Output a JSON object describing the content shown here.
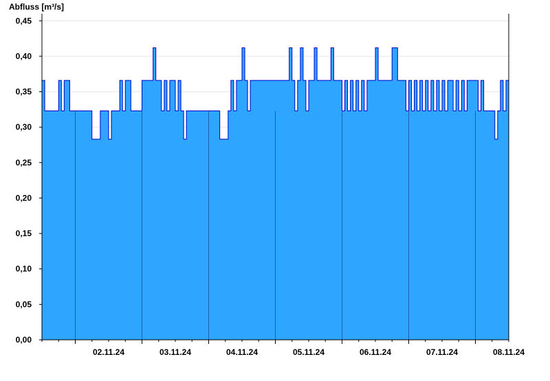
{
  "chart_data": {
    "type": "area",
    "title": "",
    "ylabel": "Abfluss [m³/s]",
    "xlabel": "",
    "ylim": [
      0,
      0.46
    ],
    "yticks": [
      0,
      0.05,
      0.1,
      0.15,
      0.2,
      0.25,
      0.3,
      0.35,
      0.4,
      0.45
    ],
    "ytick_labels": [
      "0,00",
      "0,05",
      "0,10",
      "0,15",
      "0,20",
      "0,25",
      "0,30",
      "0,35",
      "0,40",
      "0,45"
    ],
    "xlim": [
      "2024-11-01T12:00",
      "2024-11-08T12:00"
    ],
    "xtick_labels": [
      "02.11.24",
      "03.11.24",
      "04.11.24",
      "05.11.24",
      "06.11.24",
      "07.11.24",
      "08.11.24"
    ],
    "day_boundaries": [
      "2024-11-02T00:00",
      "2024-11-03T00:00",
      "2024-11-04T00:00",
      "2024-11-05T00:00",
      "2024-11-06T00:00",
      "2024-11-07T00:00",
      "2024-11-08T00:00"
    ],
    "grid": true,
    "legend": "none",
    "colors": {
      "fill": "#2ea6ff",
      "line": "#0000cc",
      "divider": "#1d5fb0",
      "grid": "#e6e6e6"
    },
    "series": [
      {
        "x": [
          "2024-11-01T12:00",
          "2024-11-01T13:00",
          "2024-11-01T14:00",
          "2024-11-01T16:00",
          "2024-11-01T17:00",
          "2024-11-01T18:00",
          "2024-11-01T19:00",
          "2024-11-01T20:00",
          "2024-11-01T21:00",
          "2024-11-01T22:00",
          "2024-11-01T23:00",
          "2024-11-02T00:00",
          "2024-11-02T01:00",
          "2024-11-02T02:00",
          "2024-11-02T03:00",
          "2024-11-02T04:00",
          "2024-11-02T05:00",
          "2024-11-02T06:00",
          "2024-11-02T09:00",
          "2024-11-02T12:00",
          "2024-11-02T13:00",
          "2024-11-02T14:00",
          "2024-11-02T15:00",
          "2024-11-02T16:00",
          "2024-11-02T17:00",
          "2024-11-02T18:00",
          "2024-11-02T20:00",
          "2024-11-02T22:00",
          "2024-11-03T00:00",
          "2024-11-03T02:00",
          "2024-11-03T03:00",
          "2024-11-03T04:00",
          "2024-11-03T05:00",
          "2024-11-03T06:00",
          "2024-11-03T07:00",
          "2024-11-03T08:00",
          "2024-11-03T09:00",
          "2024-11-03T10:00",
          "2024-11-03T11:00",
          "2024-11-03T12:00",
          "2024-11-03T13:00",
          "2024-11-03T14:00",
          "2024-11-03T15:00",
          "2024-11-03T16:00",
          "2024-11-03T17:00",
          "2024-11-03T18:00",
          "2024-11-03T19:00",
          "2024-11-03T20:00",
          "2024-11-03T21:00",
          "2024-11-03T22:00",
          "2024-11-03T23:00",
          "2024-11-04T00:00",
          "2024-11-04T04:00",
          "2024-11-04T07:00",
          "2024-11-04T08:00",
          "2024-11-04T09:00",
          "2024-11-04T10:00",
          "2024-11-04T11:00",
          "2024-11-04T12:00",
          "2024-11-04T13:00",
          "2024-11-04T14:00",
          "2024-11-04T15:00",
          "2024-11-04T16:00",
          "2024-11-04T17:00",
          "2024-11-04T18:00",
          "2024-11-04T20:00",
          "2024-11-04T22:00",
          "2024-11-05T00:00",
          "2024-11-05T02:00",
          "2024-11-05T04:00",
          "2024-11-05T05:00",
          "2024-11-05T06:00",
          "2024-11-05T07:00",
          "2024-11-05T08:00",
          "2024-11-05T09:00",
          "2024-11-05T10:00",
          "2024-11-05T11:00",
          "2024-11-05T12:00",
          "2024-11-05T13:00",
          "2024-11-05T14:00",
          "2024-11-05T15:00",
          "2024-11-05T16:00",
          "2024-11-05T17:00",
          "2024-11-05T19:00",
          "2024-11-05T20:00",
          "2024-11-05T21:00",
          "2024-11-05T22:00",
          "2024-11-05T23:00",
          "2024-11-06T00:00",
          "2024-11-06T01:00",
          "2024-11-06T02:00",
          "2024-11-06T03:00",
          "2024-11-06T04:00",
          "2024-11-06T05:00",
          "2024-11-06T06:00",
          "2024-11-06T07:00",
          "2024-11-06T08:00",
          "2024-11-06T09:00",
          "2024-11-06T10:00",
          "2024-11-06T11:00",
          "2024-11-06T12:00",
          "2024-11-06T13:00",
          "2024-11-06T14:00",
          "2024-11-06T17:00",
          "2024-11-06T18:00",
          "2024-11-06T19:00",
          "2024-11-06T20:00",
          "2024-11-06T21:00",
          "2024-11-06T22:00",
          "2024-11-06T23:00",
          "2024-11-07T00:00",
          "2024-11-07T01:00",
          "2024-11-07T02:00",
          "2024-11-07T03:00",
          "2024-11-07T04:00",
          "2024-11-07T05:00",
          "2024-11-07T06:00",
          "2024-11-07T07:00",
          "2024-11-07T08:00",
          "2024-11-07T09:00",
          "2024-11-07T10:00",
          "2024-11-07T11:00",
          "2024-11-07T12:00",
          "2024-11-07T13:00",
          "2024-11-07T14:00",
          "2024-11-07T15:00",
          "2024-11-07T16:00",
          "2024-11-07T17:00",
          "2024-11-07T18:00",
          "2024-11-07T19:00",
          "2024-11-07T20:00",
          "2024-11-07T21:00",
          "2024-11-07T22:00",
          "2024-11-07T23:00",
          "2024-11-08T00:00",
          "2024-11-08T01:00",
          "2024-11-08T02:00",
          "2024-11-08T03:00",
          "2024-11-08T04:00",
          "2024-11-08T05:00",
          "2024-11-08T06:00",
          "2024-11-08T07:00",
          "2024-11-08T08:00",
          "2024-11-08T09:00",
          "2024-11-08T10:00",
          "2024-11-08T11:00",
          "2024-11-08T12:00"
        ],
        "y": [
          0.366,
          0.323,
          0.323,
          0.323,
          0.323,
          0.366,
          0.323,
          0.366,
          0.366,
          0.323,
          0.323,
          0.323,
          0.323,
          0.323,
          0.323,
          0.323,
          0.323,
          0.283,
          0.323,
          0.283,
          0.323,
          0.323,
          0.323,
          0.366,
          0.323,
          0.366,
          0.323,
          0.323,
          0.366,
          0.366,
          0.366,
          0.412,
          0.366,
          0.366,
          0.323,
          0.366,
          0.323,
          0.366,
          0.366,
          0.323,
          0.366,
          0.323,
          0.283,
          0.323,
          0.323,
          0.323,
          0.323,
          0.323,
          0.323,
          0.323,
          0.323,
          0.323,
          0.283,
          0.323,
          0.366,
          0.323,
          0.366,
          0.366,
          0.412,
          0.366,
          0.323,
          0.366,
          0.366,
          0.366,
          0.366,
          0.366,
          0.366,
          0.366,
          0.366,
          0.366,
          0.412,
          0.366,
          0.323,
          0.366,
          0.412,
          0.366,
          0.323,
          0.366,
          0.366,
          0.412,
          0.366,
          0.366,
          0.366,
          0.366,
          0.412,
          0.366,
          0.366,
          0.366,
          0.323,
          0.366,
          0.323,
          0.366,
          0.323,
          0.366,
          0.323,
          0.366,
          0.323,
          0.366,
          0.366,
          0.366,
          0.412,
          0.366,
          0.366,
          0.366,
          0.412,
          0.412,
          0.366,
          0.366,
          0.366,
          0.323,
          0.366,
          0.323,
          0.366,
          0.323,
          0.366,
          0.323,
          0.366,
          0.323,
          0.366,
          0.323,
          0.366,
          0.323,
          0.366,
          0.323,
          0.366,
          0.366,
          0.323,
          0.366,
          0.323,
          0.366,
          0.323,
          0.366,
          0.366,
          0.366,
          0.366,
          0.323,
          0.366,
          0.323,
          0.323,
          0.323,
          0.323,
          0.283,
          0.323,
          0.366,
          0.323,
          0.366,
          0.366
        ]
      }
    ]
  }
}
